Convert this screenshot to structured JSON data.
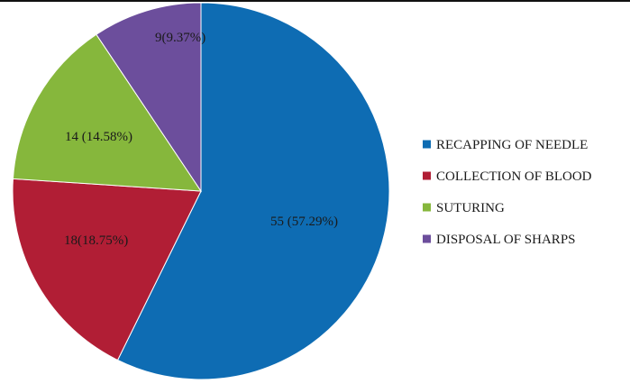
{
  "chart_data": {
    "type": "pie",
    "title": "",
    "slices": [
      {
        "label": "RECAPPING OF NEEDLE",
        "value": 55,
        "data_label": "55 (57.29%)",
        "color": "#0E6CB3"
      },
      {
        "label": "COLLECTION OF BLOOD",
        "value": 18,
        "data_label": "18(18.75%)",
        "color": "#B11E35"
      },
      {
        "label": "SUTURING",
        "value": 14,
        "data_label": "14 (14.58%)",
        "color": "#86B73C"
      },
      {
        "label": "DISPOSAL OF SHARPS",
        "value": 9,
        "data_label": "9(9.37%)",
        "color": "#6C4E9C"
      }
    ],
    "start": "12 o'clock",
    "direction": "clockwise",
    "legend_position": "right"
  }
}
